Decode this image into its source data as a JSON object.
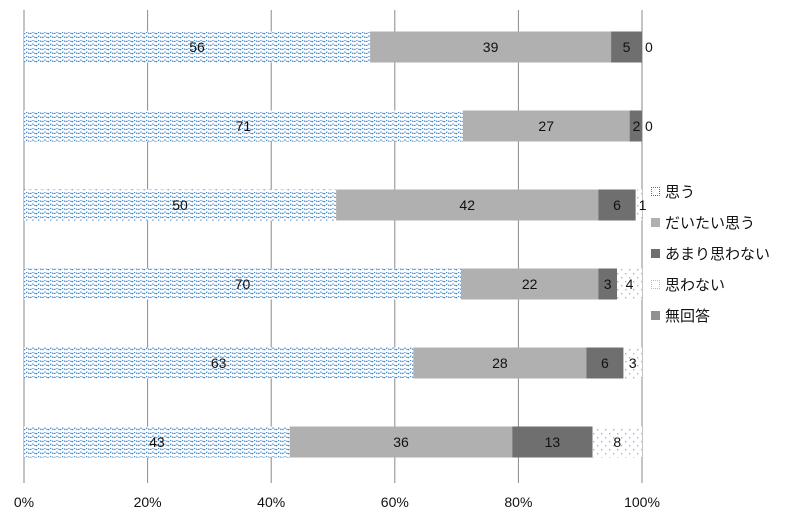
{
  "chart_data": {
    "type": "bar",
    "orientation": "horizontal",
    "stacked": true,
    "percent": true,
    "title": "",
    "xlabel": "",
    "ylabel": "",
    "xlim": [
      0,
      100
    ],
    "x_ticks": [
      "0%",
      "20%",
      "40%",
      "60%",
      "80%",
      "100%"
    ],
    "grid": "vertical",
    "legend_position": "right",
    "series": [
      {
        "name": "思う",
        "color": "#2e78c4",
        "values": [
          56,
          71,
          50,
          70,
          63,
          43
        ],
        "labels": [
          "56",
          "71",
          "50",
          "70",
          "63",
          "43"
        ]
      },
      {
        "name": "だいたい思う",
        "color": "#b0b0b0",
        "values": [
          39,
          27,
          42,
          22,
          28,
          36
        ],
        "labels": [
          "39",
          "27",
          "42",
          "22",
          "28",
          "36"
        ]
      },
      {
        "name": "あまり思わない",
        "color": "#6f6f6f",
        "values": [
          5,
          2,
          6,
          3,
          6,
          13
        ],
        "labels": [
          "5",
          "2",
          "6",
          "3",
          "6",
          "13"
        ]
      },
      {
        "name": "思わない",
        "color": "#9ec4e8",
        "values": [
          0,
          0,
          1,
          4,
          3,
          8
        ],
        "labels": [
          "0",
          "0",
          "1",
          "4",
          "3",
          "8"
        ]
      },
      {
        "name": "無回答",
        "color": "#909090",
        "values": [
          0,
          0,
          0,
          0,
          0,
          0
        ],
        "labels": []
      }
    ]
  }
}
